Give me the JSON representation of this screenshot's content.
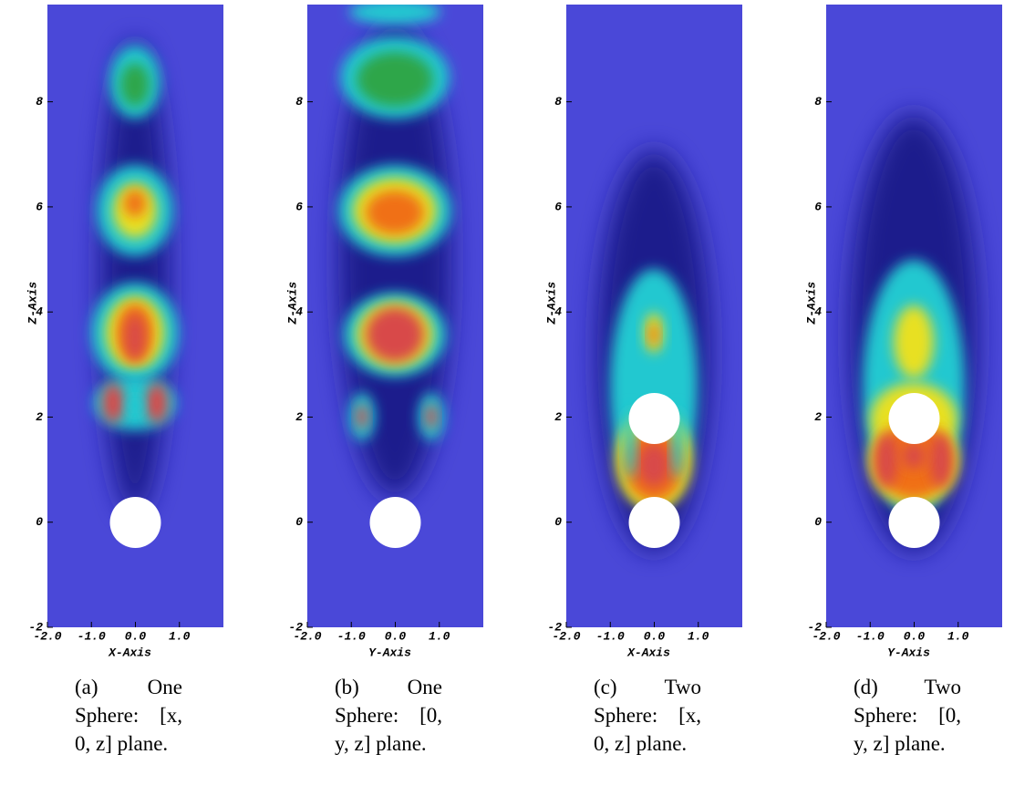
{
  "panels": [
    {
      "xlabel": "X-Axis",
      "ylabel": "Z-Axis",
      "xlim": [
        -2,
        2
      ],
      "ylim": [
        -2,
        9.85
      ],
      "xticks": [
        {
          "value": -2,
          "label": "-2.0"
        },
        {
          "value": -1,
          "label": "-1.0"
        },
        {
          "value": 0,
          "label": "0.0"
        },
        {
          "value": 1,
          "label": "1.0"
        }
      ],
      "yticks": [
        -2,
        0,
        2,
        4,
        6,
        8
      ],
      "caption": "(a) One Sphere: [x, 0, z] plane."
    },
    {
      "xlabel": "Y-Axis",
      "ylabel": "Z-Axis",
      "xlim": [
        -2,
        2
      ],
      "ylim": [
        -2,
        9.85
      ],
      "xticks": [
        {
          "value": -2,
          "label": "-2.0"
        },
        {
          "value": -1,
          "label": "-1.0"
        },
        {
          "value": 0,
          "label": "0.0"
        },
        {
          "value": 1,
          "label": "1.0"
        }
      ],
      "yticks": [
        -2,
        0,
        2,
        4,
        6,
        8
      ],
      "caption": "(b) One Sphere: [0, y, z] plane."
    },
    {
      "xlabel": "X-Axis",
      "ylabel": "Z-Axis",
      "xlim": [
        -2,
        2
      ],
      "ylim": [
        -2,
        9.85
      ],
      "xticks": [
        {
          "value": -2,
          "label": "-2.0"
        },
        {
          "value": -1,
          "label": "-1.0"
        },
        {
          "value": 0,
          "label": "0.0"
        },
        {
          "value": 1,
          "label": "1.0"
        }
      ],
      "yticks": [
        -2,
        0,
        2,
        4,
        6,
        8
      ],
      "caption": "(c) Two Sphere: [x, 0, z] plane."
    },
    {
      "xlabel": "Y-Axis",
      "ylabel": "Z-Axis",
      "xlim": [
        -2,
        2
      ],
      "ylim": [
        -2,
        9.85
      ],
      "xticks": [
        {
          "value": -2,
          "label": "-2.0"
        },
        {
          "value": -1,
          "label": "-1.0"
        },
        {
          "value": 0,
          "label": "0.0"
        },
        {
          "value": 1,
          "label": "1.0"
        }
      ],
      "yticks": [
        -2,
        0,
        2,
        4,
        6,
        8
      ],
      "caption": "(d) Two Sphere: [0, y, z] plane."
    }
  ]
}
